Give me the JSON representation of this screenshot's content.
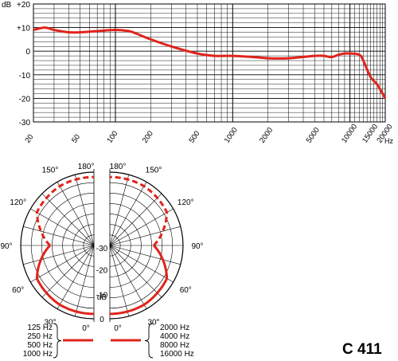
{
  "brand": {
    "model": "C 411"
  },
  "colors": {
    "curve": "#e0241b",
    "grid": "#000000",
    "background": "#ffffff"
  },
  "chart_data": [
    {
      "type": "line",
      "title": "",
      "ylabel": "dB",
      "xlabel": "Hz",
      "x_scale": "log",
      "xlim": [
        20,
        20000
      ],
      "ylim": [
        -30,
        20
      ],
      "y_ticks": [
        "+20",
        "+10",
        "0",
        "-10",
        "-20",
        "-30"
      ],
      "x_ticks": [
        "20",
        "50",
        "100",
        "200",
        "500",
        "1000",
        "2000",
        "5000",
        "10000",
        "15000",
        "20000"
      ],
      "grid": true,
      "series": [
        {
          "x": [
            20,
            25,
            30,
            40,
            50,
            70,
            100,
            130,
            150,
            200,
            300,
            500,
            700,
            1000,
            1500,
            2000,
            3000,
            5000,
            6000,
            7000,
            8000,
            9000,
            10000,
            12000,
            13000,
            15000,
            17000,
            20000
          ],
          "values": [
            9,
            10,
            9,
            8,
            8,
            8.5,
            9,
            8.5,
            7.5,
            5,
            2,
            -1,
            -2,
            -2,
            -2.5,
            -3,
            -3,
            -2,
            -2,
            -2.5,
            -1.5,
            -1,
            -1,
            -1.5,
            -4,
            -11,
            -14,
            -20
          ]
        }
      ]
    },
    {
      "type": "polar",
      "title": "",
      "radial_unit": "dB",
      "radial_ticks": [
        "-30",
        "-20",
        "-10",
        "0"
      ],
      "angle_labels": [
        "180°",
        "150°",
        "120°",
        "90°",
        "60°",
        "30°",
        "0°"
      ],
      "legend_left": {
        "entries": [
          "125 Hz",
          "250 Hz",
          "500 Hz",
          "1000 Hz"
        ]
      },
      "legend_right": {
        "entries": [
          "2000 Hz",
          "4000 Hz",
          "8000 Hz",
          "16000 Hz"
        ]
      },
      "series": [
        {
          "group": "low",
          "style": "solid",
          "angles": [
            0,
            30,
            60,
            90
          ],
          "values": [
            -2,
            -2,
            -3,
            -12
          ]
        },
        {
          "group": "low",
          "style": "dashed",
          "angles": [
            90,
            120,
            150,
            180
          ],
          "values": [
            -12,
            -3,
            -2,
            -2
          ]
        },
        {
          "group": "high",
          "style": "solid",
          "angles": [
            0,
            30,
            60,
            90
          ],
          "values": [
            -2,
            -2,
            -3,
            -12
          ]
        },
        {
          "group": "high",
          "style": "dashed",
          "angles": [
            90,
            120,
            150,
            180
          ],
          "values": [
            -12,
            -3,
            -2,
            -2
          ]
        }
      ]
    }
  ]
}
